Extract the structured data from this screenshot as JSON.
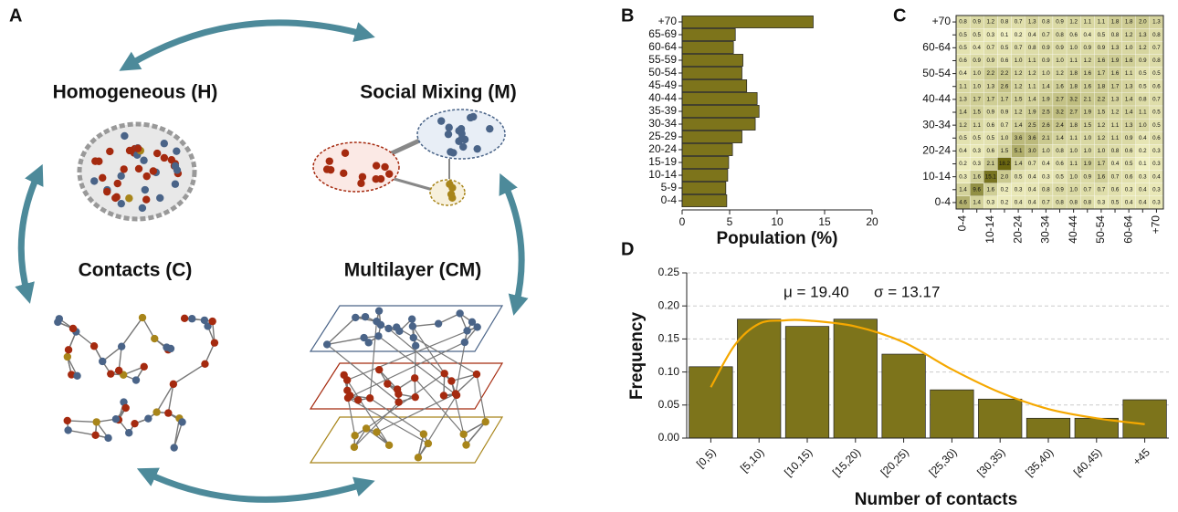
{
  "diagram": {
    "panel": "A",
    "models": [
      {
        "label": "Homogeneous (H)"
      },
      {
        "label": "Social Mixing (M)"
      },
      {
        "label": "Contacts (C)"
      },
      {
        "label": "Multilayer (CM)"
      }
    ]
  },
  "chart_data": [
    {
      "type": "hbar",
      "panel": "B",
      "categories": [
        "0-4",
        "5-9",
        "10-14",
        "15-19",
        "20-24",
        "25-29",
        "30-34",
        "35-39",
        "40-44",
        "45-49",
        "50-54",
        "55-59",
        "60-64",
        "65-69",
        "+70"
      ],
      "values": [
        4.7,
        4.6,
        4.8,
        4.9,
        5.3,
        6.3,
        7.7,
        8.1,
        7.9,
        6.8,
        6.3,
        6.4,
        5.4,
        5.6,
        13.8
      ],
      "color": "#7d741b",
      "xlim": [
        0,
        20
      ],
      "xticks": [
        0,
        5,
        10,
        15,
        20
      ],
      "xlabel": "Population (%)"
    },
    {
      "type": "heatmap",
      "panel": "C",
      "categories": [
        "0-4",
        null,
        "10-14",
        null,
        "20-24",
        null,
        "30-34",
        null,
        "40-44",
        null,
        "50-54",
        null,
        "60-64",
        null,
        "+70"
      ],
      "values": [
        [
          4.6,
          1.4,
          0.3,
          0.2,
          0.4,
          0.4,
          0.7,
          0.8,
          0.8,
          0.8,
          0.3,
          0.5,
          0.4,
          0.4,
          0.3
        ],
        [
          1.4,
          9.6,
          1.6,
          0.2,
          0.3,
          0.4,
          0.8,
          0.9,
          1.0,
          0.7,
          0.7,
          0.6,
          0.3,
          0.4,
          0.3
        ],
        [
          0.3,
          1.6,
          15.1,
          2.0,
          0.5,
          0.4,
          0.3,
          0.5,
          1.0,
          0.9,
          1.6,
          0.7,
          0.6,
          0.3,
          0.4
        ],
        [
          0.2,
          0.3,
          2.1,
          18.2,
          1.4,
          0.7,
          0.4,
          0.6,
          1.1,
          1.9,
          1.7,
          0.4,
          0.5,
          0.1,
          0.3
        ],
        [
          0.4,
          0.3,
          0.6,
          1.5,
          5.1,
          3.0,
          1.0,
          0.8,
          1.0,
          1.0,
          1.0,
          0.8,
          0.6,
          0.2,
          0.3
        ],
        [
          0.5,
          0.5,
          0.5,
          1.0,
          3.6,
          3.6,
          2.1,
          1.4,
          1.1,
          1.0,
          1.2,
          1.1,
          0.9,
          0.4,
          0.6
        ],
        [
          1.2,
          1.1,
          0.6,
          0.7,
          1.4,
          2.5,
          2.6,
          2.4,
          1.8,
          1.5,
          1.2,
          1.1,
          1.3,
          1.0,
          0.5
        ],
        [
          1.4,
          1.5,
          0.9,
          0.9,
          1.2,
          1.9,
          2.5,
          3.2,
          2.7,
          1.9,
          1.5,
          1.2,
          1.4,
          1.1,
          0.5
        ],
        [
          1.3,
          1.7,
          1.7,
          1.7,
          1.5,
          1.4,
          1.9,
          2.7,
          3.2,
          2.1,
          2.2,
          1.3,
          1.4,
          0.8,
          0.7
        ],
        [
          1.1,
          1.0,
          1.3,
          2.6,
          1.2,
          1.1,
          1.4,
          1.6,
          1.8,
          1.6,
          1.8,
          1.7,
          1.3,
          0.5,
          0.6
        ],
        [
          0.4,
          1.0,
          2.2,
          2.2,
          1.2,
          1.2,
          1.0,
          1.2,
          1.8,
          1.6,
          1.7,
          1.6,
          1.1,
          0.5,
          0.5
        ],
        [
          0.6,
          0.9,
          0.9,
          0.6,
          1.0,
          1.1,
          0.9,
          1.0,
          1.1,
          1.2,
          1.6,
          1.9,
          1.6,
          0.9,
          0.8
        ],
        [
          0.5,
          0.4,
          0.7,
          0.5,
          0.7,
          0.8,
          0.9,
          0.9,
          1.0,
          0.9,
          0.9,
          1.3,
          1.0,
          1.2,
          0.7
        ],
        [
          0.5,
          0.5,
          0.3,
          0.1,
          0.2,
          0.4,
          0.7,
          0.8,
          0.6,
          0.4,
          0.5,
          0.8,
          1.2,
          1.3,
          0.8
        ],
        [
          0.8,
          0.9,
          1.2,
          0.8,
          0.7,
          1.3,
          0.8,
          0.9,
          1.2,
          1.1,
          1.1,
          1.8,
          1.8,
          2.0,
          1.3
        ]
      ],
      "value_labels": [
        [
          "4.6",
          "1.4",
          "0.3",
          "0.2",
          "0.4",
          "0.4",
          "0.7",
          "0.8",
          "0.8",
          "0.8",
          "0.3",
          "0.5",
          "0.4",
          "0.4",
          "0.3"
        ],
        [
          "1.4",
          "9.6",
          "1.6",
          "0.2",
          "0.3",
          "0.4",
          "0.8",
          "0.9",
          "1.0",
          "0.7",
          "0.7",
          "0.6",
          "0.3",
          "0.4",
          "0.3"
        ],
        [
          "0.3",
          "1.6",
          "15.1",
          "2.0",
          "0.5",
          "0.4",
          "0.3",
          "0.5",
          "1.0",
          "0.9",
          "1.6",
          "0.7",
          "0.6",
          "0.3",
          "0.4"
        ],
        [
          "0.2",
          "0.3",
          "2.1",
          "18.2",
          "1.4",
          "0.7",
          "0.4",
          "0.6",
          "1.1",
          "1.9",
          "1.7",
          "0.4",
          "0.5",
          "0.1",
          "0.3"
        ],
        [
          "0.4",
          "0.3",
          "0.6",
          "1.5",
          "5.1",
          "3.0",
          "1.0",
          "0.8",
          "1.0",
          "1.0",
          "1.0",
          "0.8",
          "0.6",
          "0.2",
          "0.3"
        ],
        [
          "0.5",
          "0.5",
          "0.5",
          "1.0",
          "3.6",
          "3.6",
          "2.1",
          "1.4",
          "1.1",
          "1.0",
          "1.2",
          "1.1",
          "0.9",
          "0.4",
          "0.6"
        ],
        [
          "1.2",
          "1.1",
          "0.6",
          "0.7",
          "1.4",
          "2.5",
          "2.6",
          "2.4",
          "1.8",
          "1.5",
          "1.2",
          "1.1",
          "1.3",
          "1.0",
          "0.5"
        ],
        [
          "1.4",
          "1.5",
          "0.9",
          "0.9",
          "1.2",
          "1.9",
          "2.5",
          "3.2",
          "2.7",
          "1.9",
          "1.5",
          "1.2",
          "1.4",
          "1.1",
          "0.5"
        ],
        [
          "1.3",
          "1.7",
          "1.7",
          "1.7",
          "1.5",
          "1.4",
          "1.9",
          "2.7",
          "3.2",
          "2.1",
          "2.2",
          "1.3",
          "1.4",
          "0.8",
          "0.7"
        ],
        [
          "1.1",
          "1.0",
          "1.3",
          "2.6",
          "1.2",
          "1.1",
          "1.4",
          "1.6",
          "1.8",
          "1.6",
          "1.8",
          "1.7",
          "1.3",
          "0.5",
          "0.6"
        ],
        [
          "0.4",
          "1.0",
          "2.2",
          "2.2",
          "1.2",
          "1.2",
          "1.0",
          "1.2",
          "1.8",
          "1.6",
          "1.7",
          "1.6",
          "1.1",
          "0.5",
          "0.5"
        ],
        [
          "0.6",
          "0.9",
          "0.9",
          "0.6",
          "1.0",
          "1.1",
          "0.9",
          "1.0",
          "1.1",
          "1.2",
          "1.6",
          "1.9",
          "1.6",
          "0.9",
          "0.8"
        ],
        [
          "0.5",
          "0.4",
          "0.7",
          "0.5",
          "0.7",
          "0.8",
          "0.9",
          "0.9",
          "1.0",
          "0.9",
          "0.9",
          "1.3",
          "1.0",
          "1.2",
          "0.7"
        ],
        [
          "0.5",
          "0.5",
          "0.3",
          "0.1",
          "0.2",
          "0.4",
          "0.7",
          "0.8",
          "0.6",
          "0.4",
          "0.5",
          "0.8",
          "1.2",
          "1.3",
          "0.8"
        ],
        [
          "0.8",
          "0.9",
          "1.2",
          "0.8",
          "0.7",
          "1.3",
          "0.8",
          "0.9",
          "1.2",
          "1.1",
          "1.1",
          "1.8",
          "1.8",
          "2.0",
          "1.3"
        ]
      ],
      "color_low": "#fbfbd0",
      "color_high": "#6b6710"
    },
    {
      "type": "bar",
      "panel": "D",
      "categories": [
        "[0,5)",
        "[5,10)",
        "[10,15)",
        "[15,20)",
        "[20,25)",
        "[25,30)",
        "[30,35)",
        "[35,40)",
        "[40,45)",
        "+45"
      ],
      "values": [
        0.108,
        0.18,
        0.169,
        0.18,
        0.127,
        0.073,
        0.059,
        0.03,
        0.03,
        0.058
      ],
      "color": "#7d741b",
      "ylim": [
        0,
        0.25
      ],
      "yticks": [
        {
          "value": 0,
          "label": "0.00"
        },
        {
          "value": 0.05,
          "label": "0.05"
        },
        {
          "value": 0.1,
          "label": "0.10"
        },
        {
          "value": 0.15,
          "label": "0.15"
        },
        {
          "value": 0.2,
          "label": "0.20"
        },
        {
          "value": 0.25,
          "label": "0.25"
        }
      ],
      "grid": true,
      "xlabel": "Number of contacts",
      "ylabel": "Frequency",
      "annotations": [
        "μ = 19.40",
        "σ = 13.17"
      ],
      "fit": {
        "color": "#f5a800",
        "x": [
          0,
          0.5,
          1,
          1.5,
          2,
          3,
          4,
          5,
          6,
          7,
          8,
          9
        ],
        "values": [
          0.077,
          0.141,
          0.173,
          0.178,
          0.178,
          0.169,
          0.145,
          0.104,
          0.069,
          0.044,
          0.03,
          0.021
        ]
      }
    }
  ]
}
